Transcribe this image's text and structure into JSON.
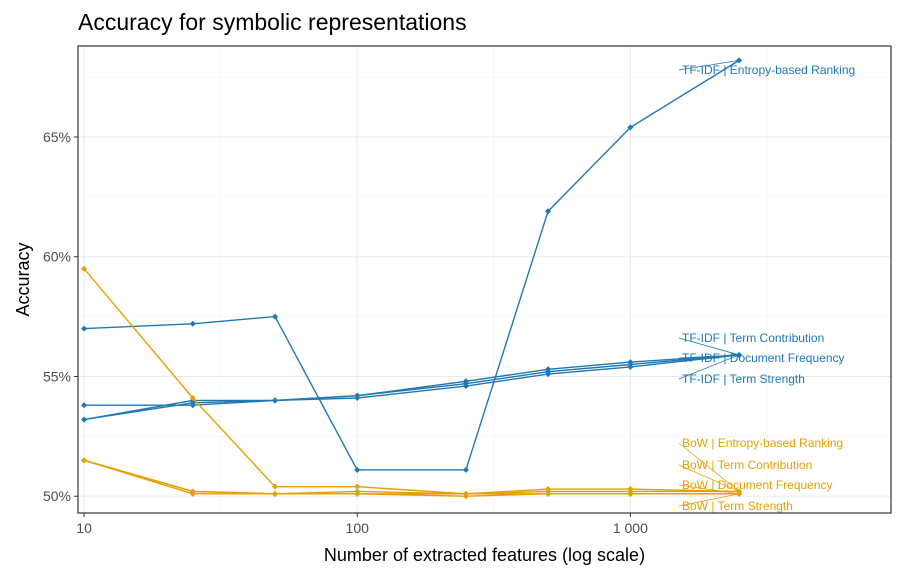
{
  "chart_data": {
    "type": "line",
    "title": "Accuracy for symbolic representations",
    "xlabel": "Number of extracted features (log scale)",
    "ylabel": "Accuracy",
    "x_scale": "log10",
    "xlim": [
      9.5,
      9000
    ],
    "ylim": [
      49.3,
      68.8
    ],
    "x_ticks": [
      10,
      100,
      1000
    ],
    "x_tick_labels": [
      "10",
      "100",
      "1 000"
    ],
    "y_ticks": [
      50,
      55,
      60,
      65
    ],
    "y_tick_labels": [
      "50%",
      "55%",
      "60%",
      "65%"
    ],
    "grid": true,
    "colors": {
      "TF-IDF": "#1f78b4",
      "BoW": "#e69f00"
    },
    "x": [
      10,
      25,
      50,
      100,
      250,
      500,
      1000,
      2500
    ],
    "series": [
      {
        "group": "TF-IDF",
        "label": "TF-IDF | Entropy-based Ranking",
        "values": [
          57.0,
          57.2,
          57.5,
          51.1,
          51.1,
          61.9,
          65.4,
          68.2
        ]
      },
      {
        "group": "TF-IDF",
        "label": "TF-IDF | Term Contribution",
        "values": [
          53.2,
          53.9,
          54.0,
          54.2,
          54.7,
          55.2,
          55.5,
          55.9
        ]
      },
      {
        "group": "TF-IDF",
        "label": "TF-IDF | Document Frequency",
        "values": [
          53.8,
          53.8,
          54.0,
          54.2,
          54.8,
          55.3,
          55.6,
          55.9
        ]
      },
      {
        "group": "TF-IDF",
        "label": "TF-IDF | Term Strength",
        "values": [
          53.2,
          54.0,
          54.0,
          54.1,
          54.6,
          55.1,
          55.4,
          55.9
        ]
      },
      {
        "group": "BoW",
        "label": "BoW | Entropy-based Ranking",
        "values": [
          59.5,
          54.1,
          50.4,
          50.4,
          50.1,
          50.3,
          50.3,
          50.2
        ]
      },
      {
        "group": "BoW",
        "label": "BoW | Term Contribution",
        "values": [
          51.5,
          50.2,
          50.1,
          50.2,
          50.1,
          50.2,
          50.2,
          50.2
        ]
      },
      {
        "group": "BoW",
        "label": "BoW | Document Frequency",
        "values": [
          51.5,
          50.1,
          50.1,
          50.1,
          50.1,
          50.1,
          50.1,
          50.1
        ]
      },
      {
        "group": "BoW",
        "label": "BoW | Term Strength",
        "values": [
          51.5,
          50.2,
          50.1,
          50.1,
          50.0,
          50.1,
          50.1,
          50.1
        ]
      }
    ]
  }
}
